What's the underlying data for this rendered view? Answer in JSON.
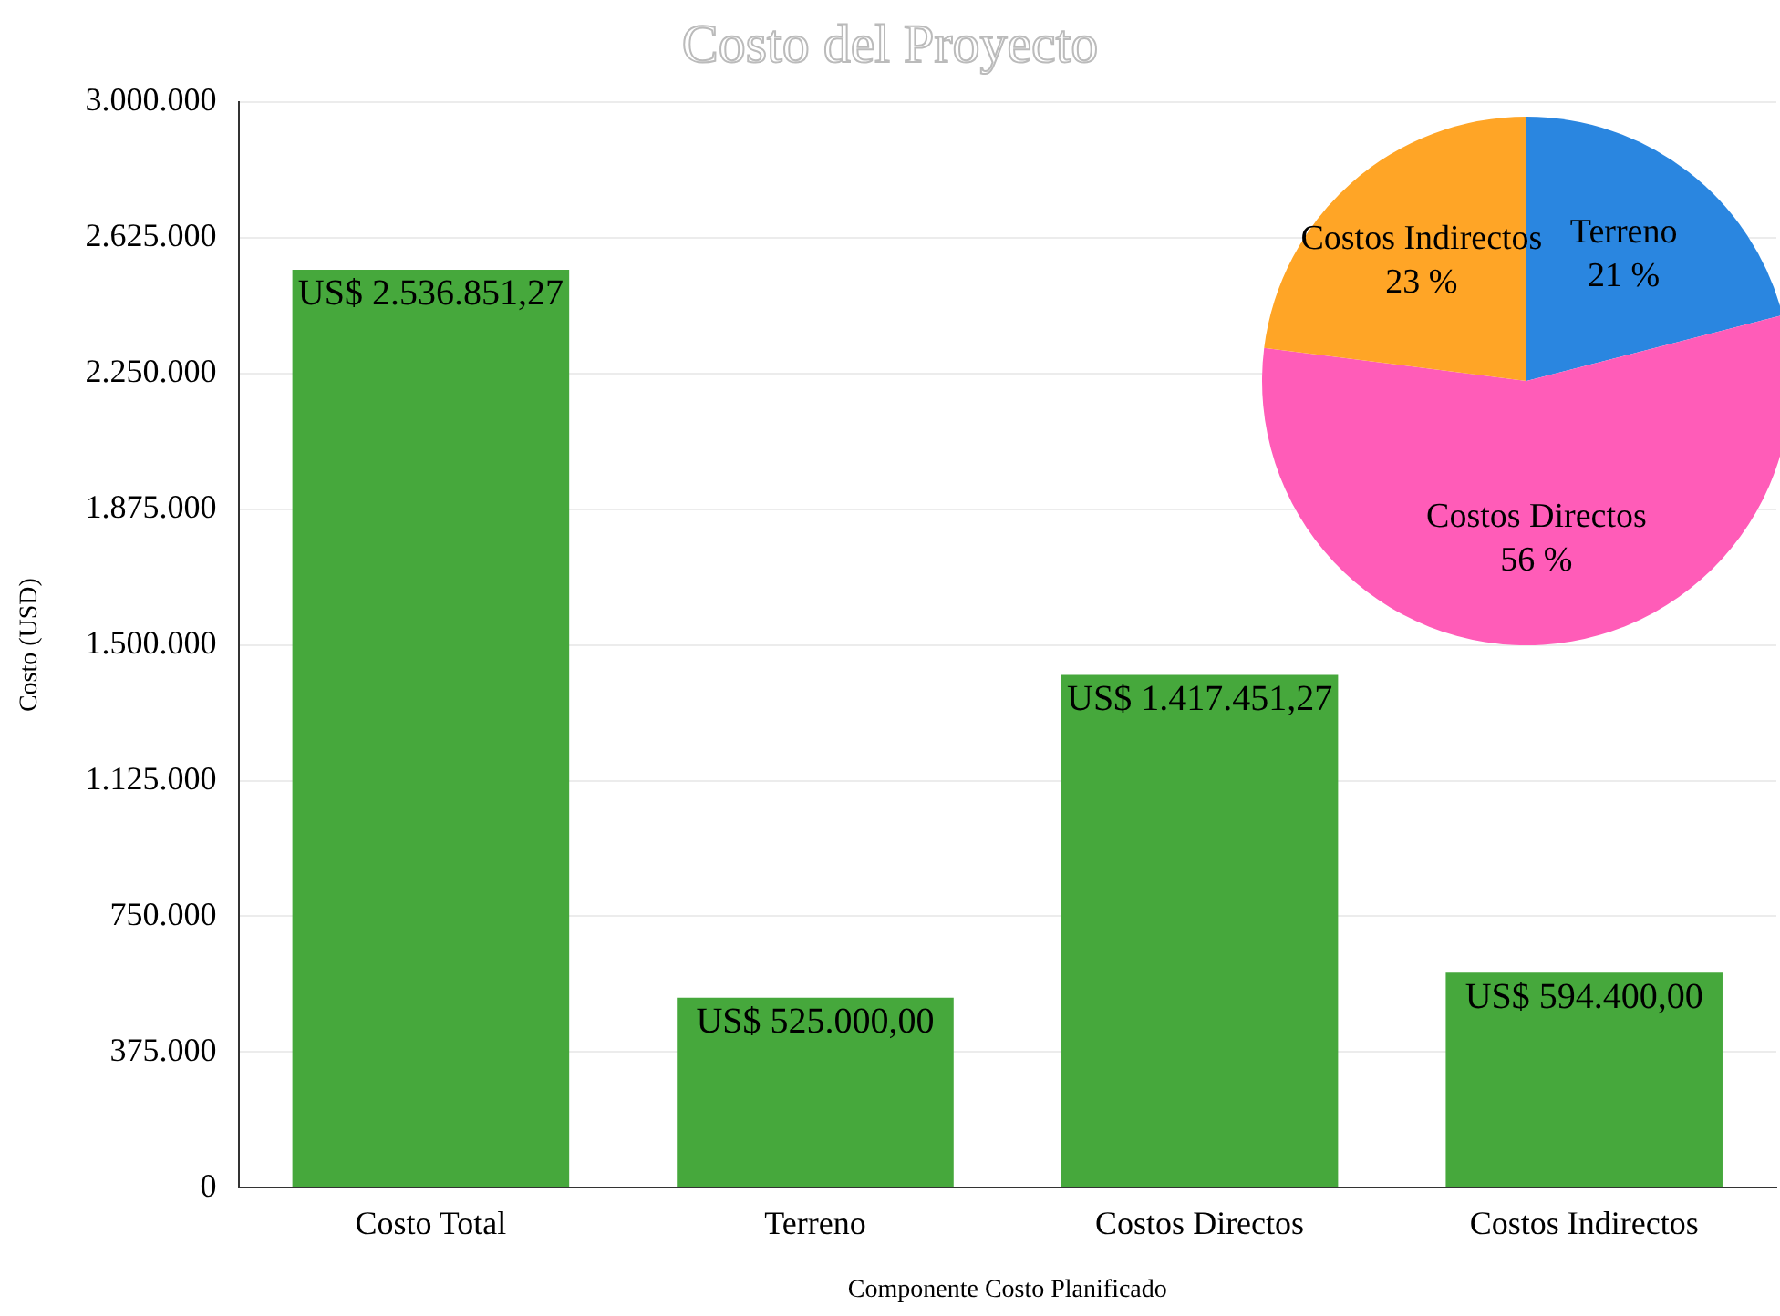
{
  "chart_data": [
    {
      "type": "bar",
      "title": "Costo del Proyecto",
      "xlabel": "Componente Costo Planificado",
      "ylabel": "Costo (USD)",
      "categories": [
        "Costo Total",
        "Terreno",
        "Costos Directos",
        "Costos Indirectos"
      ],
      "values": [
        2536851.27,
        525000,
        1417451.27,
        594400
      ],
      "color": "#46a83c",
      "value_labels": [
        "US$ 2.536.851,27",
        "US$ 525.000,00",
        "US$ 1.417.451,27",
        "US$ 594.400,00"
      ],
      "ylim": [
        0,
        3000000
      ],
      "yticks": [
        {
          "value": 0,
          "label": "0"
        },
        {
          "value": 375000,
          "label": "375.000"
        },
        {
          "value": 750000,
          "label": "750.000"
        },
        {
          "value": 1125000,
          "label": "1.125.000"
        },
        {
          "value": 1500000,
          "label": "1.500.000"
        },
        {
          "value": 1875000,
          "label": "1.875.000"
        },
        {
          "value": 2250000,
          "label": "2.250.000"
        },
        {
          "value": 2625000,
          "label": "2.625.000"
        },
        {
          "value": 3000000,
          "label": "3.000.000"
        }
      ],
      "grid": "y",
      "legend": false
    },
    {
      "type": "pie",
      "categories": [
        "Terreno",
        "Costos Directos",
        "Costos Indirectos"
      ],
      "values": [
        21,
        56,
        23
      ],
      "colors": [
        "#2a86e0",
        "#ff5cb8",
        "#ffa526"
      ],
      "value_labels": [
        "21 %",
        "56 %",
        "23 %"
      ],
      "legend": false
    }
  ]
}
